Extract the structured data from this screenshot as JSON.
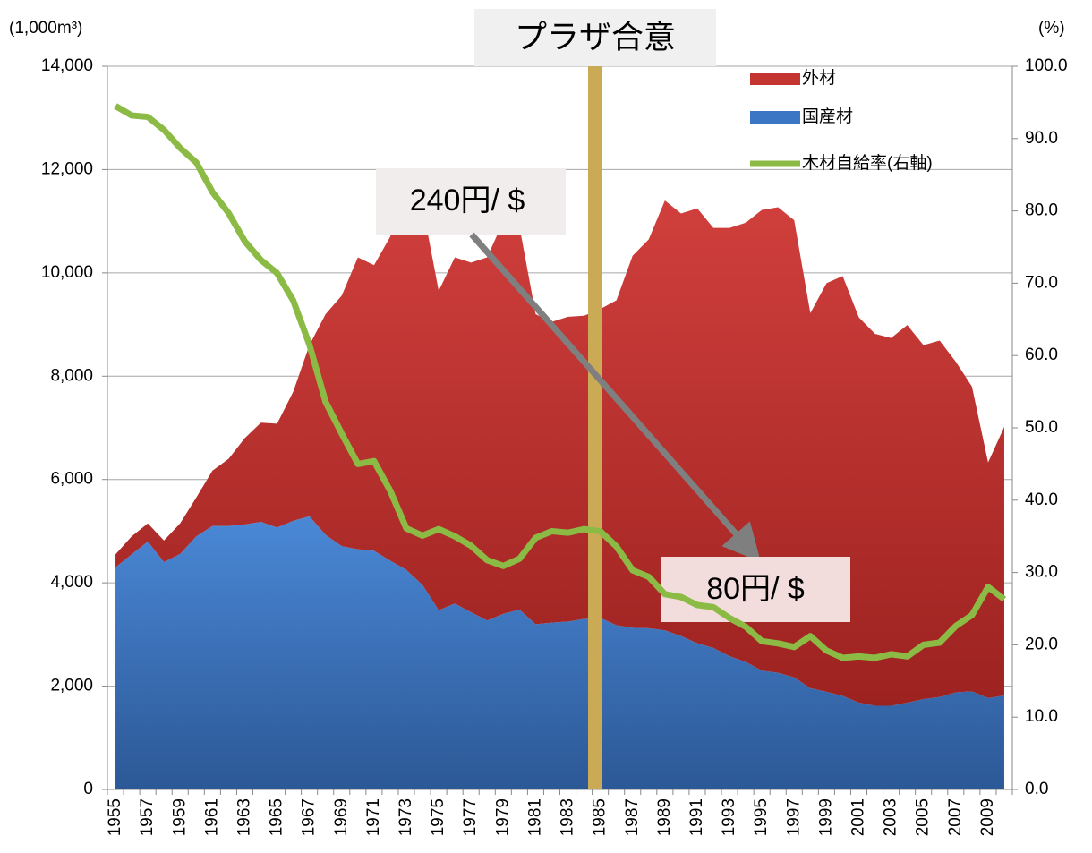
{
  "chart_data": {
    "type": "area",
    "stacked": true,
    "y_unit_label": "(1,000m³)",
    "y2_unit_label": "(%)",
    "annotations": [
      "プラザ合意",
      "240円/ $",
      "80円/ $"
    ],
    "categories": [
      "1955",
      null,
      "1957",
      null,
      "1959",
      null,
      "1961",
      null,
      "1963",
      null,
      "1965",
      null,
      "1967",
      null,
      "1969",
      null,
      "1971",
      null,
      "1973",
      null,
      "1975",
      null,
      "1977",
      null,
      "1979",
      null,
      "1981",
      null,
      "1983",
      null,
      "1985",
      null,
      "1987",
      null,
      "1989",
      null,
      "1991",
      null,
      "1993",
      null,
      "1995",
      null,
      "1997",
      null,
      "1999",
      null,
      "2001",
      null,
      "2003",
      null,
      "2005",
      null,
      "2007",
      null,
      "2009",
      null
    ],
    "series": [
      {
        "name": "外材",
        "color": "#c43532",
        "values": [
          250,
          350,
          350,
          420,
          590,
          750,
          1070,
          1300,
          1670,
          1920,
          2010,
          2500,
          3310,
          4270,
          4850,
          5650,
          5530,
          6270,
          7500,
          7340,
          6180,
          6700,
          6770,
          7030,
          7600,
          7420,
          6000,
          5820,
          5900,
          5870,
          5980,
          6290,
          7200,
          7530,
          8320,
          8180,
          8420,
          8130,
          8290,
          8500,
          8920,
          9010,
          8850,
          7260,
          7910,
          8130,
          7460,
          7200,
          7120,
          7310,
          6850,
          6900,
          6400,
          5900,
          4560,
          5200
        ]
      },
      {
        "name": "国産材",
        "color": "#3a76c4",
        "values": [
          4300,
          4550,
          4800,
          4400,
          4560,
          4900,
          5100,
          5100,
          5130,
          5180,
          5070,
          5200,
          5290,
          4930,
          4710,
          4650,
          4620,
          4430,
          4250,
          3960,
          3470,
          3600,
          3430,
          3270,
          3400,
          3480,
          3200,
          3230,
          3250,
          3300,
          3320,
          3180,
          3130,
          3120,
          3080,
          2970,
          2830,
          2740,
          2580,
          2470,
          2300,
          2260,
          2170,
          1960,
          1890,
          1810,
          1680,
          1620,
          1620,
          1680,
          1750,
          1790,
          1880,
          1900,
          1770,
          1820
        ]
      },
      {
        "name": "木材自給率(右軸)",
        "color": "#8cbb45",
        "type": "line",
        "axis": "y2",
        "values": [
          94.5,
          93.2,
          93.0,
          91.2,
          88.7,
          86.7,
          82.6,
          79.7,
          75.8,
          73.2,
          71.4,
          67.6,
          61.5,
          53.6,
          49.2,
          45.0,
          45.4,
          41.3,
          36.1,
          35.1,
          36.0,
          35.0,
          33.7,
          31.7,
          30.9,
          31.9,
          34.8,
          35.7,
          35.5,
          36.0,
          35.7,
          33.6,
          30.3,
          29.4,
          27.0,
          26.6,
          25.5,
          25.2,
          23.7,
          22.5,
          20.5,
          20.2,
          19.7,
          21.2,
          19.2,
          18.2,
          18.4,
          18.2,
          18.7,
          18.4,
          20.0,
          20.3,
          22.6,
          24.1,
          28.0,
          26.3
        ]
      }
    ],
    "ylim": [
      0,
      14000
    ],
    "yticks": [
      0,
      {
        "value": 2000,
        "label": "2,000"
      },
      {
        "value": 4000,
        "label": "4,000"
      },
      {
        "value": 6000,
        "label": "6,000"
      },
      {
        "value": 8000,
        "label": "8,000"
      },
      {
        "value": 10000,
        "label": "10,000"
      },
      {
        "value": 12000,
        "label": "12,000"
      },
      {
        "value": 14000,
        "label": "14,000"
      }
    ],
    "y2lim": [
      0,
      100
    ],
    "y2ticks": [
      {
        "value": 0,
        "label": "0.0"
      },
      {
        "value": 10,
        "label": "10.0"
      },
      {
        "value": 20,
        "label": "20.0"
      },
      {
        "value": 30,
        "label": "30.0"
      },
      {
        "value": 40,
        "label": "40.0"
      },
      {
        "value": 50,
        "label": "50.0"
      },
      {
        "value": 60,
        "label": "60.0"
      },
      {
        "value": 70,
        "label": "70.0"
      },
      {
        "value": 80,
        "label": "80.0"
      },
      {
        "value": 90,
        "label": "90.0"
      },
      {
        "value": 100,
        "label": "100.0"
      }
    ],
    "grid": true,
    "legend": "upper right"
  }
}
